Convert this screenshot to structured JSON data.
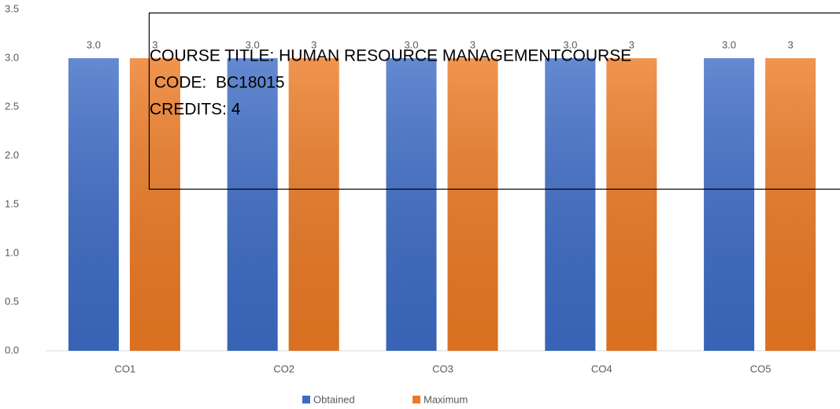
{
  "chart_data": {
    "type": "bar",
    "categories": [
      "CO1",
      "CO2",
      "CO3",
      "CO4",
      "CO5"
    ],
    "series": [
      {
        "name": "Obtained",
        "color": "#3d6cc6",
        "values": [
          3.0,
          3.0,
          3.0,
          3.0,
          3.0
        ],
        "value_labels": [
          "3.0",
          "3.0",
          "3.0",
          "3.0",
          "3.0"
        ]
      },
      {
        "name": "Maximum",
        "color": "#ec7a24",
        "values": [
          3,
          3,
          3,
          3,
          3
        ],
        "value_labels": [
          "3",
          "3",
          "3",
          "3",
          "3"
        ]
      }
    ],
    "ylim": [
      0,
      3.5
    ],
    "yticks": [
      {
        "value": 0,
        "label": "0.0"
      },
      {
        "value": 0.5,
        "label": "0.5"
      },
      {
        "value": 1,
        "label": "1.0"
      },
      {
        "value": 1.5,
        "label": "1.5"
      },
      {
        "value": 2,
        "label": "2.0"
      },
      {
        "value": 2.5,
        "label": "2.5"
      },
      {
        "value": 3,
        "label": "3.0"
      },
      {
        "value": 3.5,
        "label": "3.5"
      }
    ],
    "grid": false,
    "legend": "bottom",
    "annotation": [
      "COURSE TITLE: HUMAN RESOURCE MANAGEMENTCOURSE",
      " CODE:  BC18015",
      "CREDITS: 4"
    ]
  }
}
